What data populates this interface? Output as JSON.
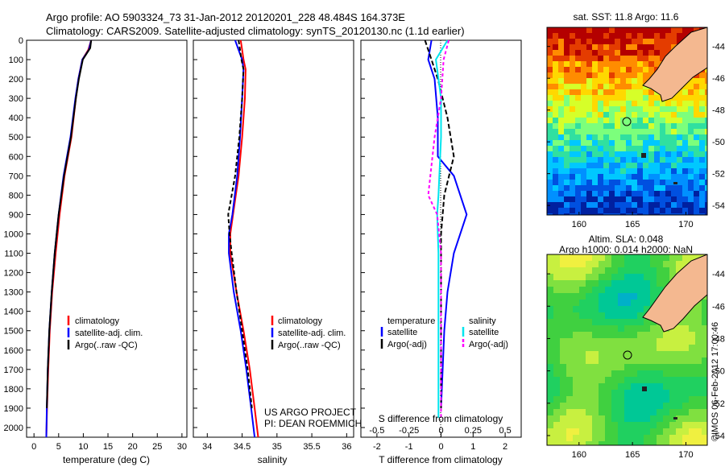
{
  "header": {
    "line1": "Argo profile: AO 5903324_73 31-Jan-2012 20120201_228 48.484S 164.373E",
    "line2": "Climatology: CARS2009. Satellite-adjusted climatology: synTS_20120130.nc (1.1d earlier)"
  },
  "credit_project": "US ARGO PROJECT",
  "credit_pi": "PI: DEAN ROEMMICH",
  "watermark": "©IMOS 06-Feb-2012 17:00:46",
  "colors": {
    "climatology": "#ff0000",
    "satellite": "#0000ff",
    "argo": "#000000",
    "sal_satellite": "#00e5ee",
    "sal_argo": "#ff00ff",
    "land": "#f4b890"
  },
  "chart_data": [
    {
      "type": "line",
      "xlabel": "temperature (deg C)",
      "ylim": [
        2050,
        0
      ],
      "xlim": [
        -1.5,
        31
      ],
      "xticks": [
        "0",
        "5",
        "10",
        "15",
        "20",
        "25",
        "30"
      ],
      "yticks": [
        "0",
        "100",
        "200",
        "300",
        "400",
        "500",
        "600",
        "700",
        "800",
        "900",
        "1000",
        "1100",
        "1200",
        "1300",
        "1400",
        "1500",
        "1600",
        "1700",
        "1800",
        "1900",
        "2000"
      ],
      "legend": [
        "climatology",
        "satellite-adj. clim.",
        "Argo(..raw -QC)"
      ],
      "series": [
        {
          "name": "climatology",
          "x": [
            11.6,
            11.0,
            9.8,
            9.0,
            8.5,
            7.6,
            6.2,
            5.2,
            4.4,
            3.7,
            3.2,
            2.9,
            2.65,
            2.5
          ],
          "y": [
            0,
            50,
            100,
            200,
            300,
            500,
            700,
            900,
            1100,
            1300,
            1500,
            1700,
            1900,
            2050
          ]
        },
        {
          "name": "satellite-adj. clim.",
          "x": [
            11.6,
            11.1,
            9.8,
            9.0,
            8.4,
            7.4,
            6.0,
            5.0,
            4.2,
            3.6,
            3.1,
            2.8,
            2.6,
            2.5
          ],
          "y": [
            0,
            50,
            100,
            200,
            300,
            500,
            700,
            900,
            1100,
            1300,
            1500,
            1700,
            1900,
            2050
          ]
        },
        {
          "name": "Argo(..raw -QC)",
          "x": [
            11.6,
            11.4,
            9.9,
            9.1,
            8.5,
            7.5,
            6.1,
            5.0,
            4.2,
            3.6,
            3.1,
            2.8,
            2.6
          ],
          "y": [
            0,
            40,
            100,
            200,
            300,
            500,
            700,
            900,
            1100,
            1300,
            1500,
            1700,
            1900
          ]
        }
      ]
    },
    {
      "type": "line",
      "xlabel": "salinity",
      "ylim": [
        2050,
        0
      ],
      "xlim": [
        33.8,
        36.1
      ],
      "xticks": [
        "34",
        "34.5",
        "35",
        "35.5",
        "36"
      ],
      "legend": [
        "climatology",
        "satellite-adj. clim.",
        "Argo(..raw -QC)"
      ],
      "series": [
        {
          "name": "climatology",
          "x": [
            34.48,
            34.5,
            34.52,
            34.55,
            34.54,
            34.5,
            34.45,
            34.37,
            34.33,
            34.33,
            34.42,
            34.52,
            34.61,
            34.68,
            34.73
          ],
          "y": [
            0,
            50,
            100,
            150,
            300,
            500,
            700,
            900,
            1000,
            1100,
            1300,
            1500,
            1700,
            1900,
            2050
          ]
        },
        {
          "name": "satellite-adj. clim.",
          "x": [
            34.4,
            34.45,
            34.5,
            34.52,
            34.5,
            34.47,
            34.43,
            34.36,
            34.31,
            34.31,
            34.38,
            34.48,
            34.56,
            34.63,
            34.68
          ],
          "y": [
            0,
            50,
            100,
            150,
            300,
            500,
            700,
            900,
            1000,
            1100,
            1300,
            1500,
            1700,
            1900,
            2050
          ]
        },
        {
          "name": "Argo(..raw -QC)",
          "x": [
            34.45,
            34.47,
            34.49,
            34.52,
            34.5,
            34.46,
            34.4,
            34.3,
            34.32,
            34.35,
            34.42,
            34.5,
            34.58,
            34.64
          ],
          "y": [
            0,
            50,
            100,
            150,
            300,
            500,
            700,
            900,
            1000,
            1100,
            1300,
            1500,
            1700,
            1900
          ]
        }
      ]
    },
    {
      "type": "line",
      "xlabel": "T difference from climatology",
      "xlabel_top": "S difference from climatology",
      "ylim": [
        2050,
        0
      ],
      "xlim": [
        -2.5,
        2.5
      ],
      "xticks": [
        "-2",
        "-1",
        "0",
        "1",
        "2"
      ],
      "xticks_top": [
        "-0.5",
        "-0.25",
        "0",
        "0.25",
        "0.5"
      ],
      "legend_temperature": {
        "title": "temperature",
        "items": [
          "satellite",
          "Argo(-adj)"
        ]
      },
      "legend_salinity": {
        "title": "salinity",
        "items": [
          "satellite",
          "Argo(-adj)"
        ]
      },
      "series": [
        {
          "name": "satellite",
          "x": [
            -0.3,
            -0.4,
            -0.2,
            -0.1,
            -0.1,
            -0.1,
            0.4,
            0.8,
            0.4,
            0.2,
            0.1,
            0.05,
            0.0
          ],
          "y": [
            0,
            100,
            200,
            400,
            500,
            600,
            700,
            900,
            1100,
            1300,
            1500,
            1700,
            1900
          ]
        },
        {
          "name": "Argo(-adj)",
          "x": [
            -0.5,
            -0.3,
            -0.1,
            0.2,
            0.4,
            0.1,
            0.0,
            0.0,
            0.0,
            0.0
          ],
          "y": [
            0,
            100,
            200,
            400,
            600,
            800,
            1000,
            1200,
            1500,
            1900
          ]
        }
      ]
    },
    {
      "type": "heatmap",
      "title": "sat. SST: 11.8 Argo: 11.6",
      "xticks": [
        "160",
        "165",
        "170"
      ],
      "yticks": [
        "-44",
        "-46",
        "-48",
        "-50",
        "-52",
        "-54"
      ]
    },
    {
      "type": "heatmap",
      "title_line1": "Altim. SLA: 0.048",
      "title_line2": "Argo h1000: 0.014 h2000: NaN",
      "xticks": [
        "160",
        "165",
        "170"
      ],
      "yticks": [
        "-44",
        "-46",
        "-48",
        "-50",
        "-52",
        "-54"
      ]
    }
  ]
}
